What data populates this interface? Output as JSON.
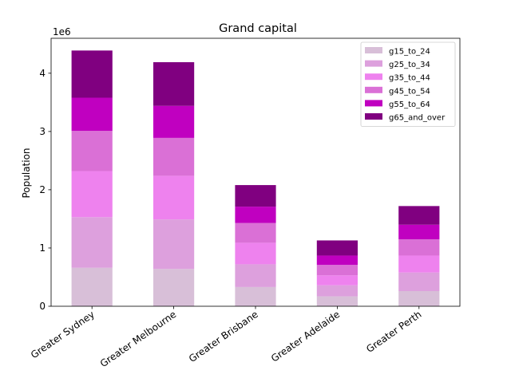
{
  "chart_data": {
    "type": "bar",
    "stacked": true,
    "title": "Grand capital",
    "xlabel": "",
    "ylabel": "Population",
    "y_multiplier_label": "1e6",
    "ylim": [
      0,
      4600000
    ],
    "yticks": [
      0,
      1000000,
      2000000,
      3000000,
      4000000
    ],
    "ytick_labels": [
      "0",
      "1",
      "2",
      "3",
      "4"
    ],
    "grid": false,
    "legend_position": "top-right",
    "categories": [
      "Greater Sydney",
      "Greater Melbourne",
      "Greater Brisbane",
      "Greater Adelaide",
      "Greater Perth"
    ],
    "series": [
      {
        "name": "g15_to_24",
        "color": "#d8bfd8",
        "values": [
          660000,
          640000,
          330000,
          170000,
          260000
        ]
      },
      {
        "name": "g25_to_34",
        "color": "#dda0dd",
        "values": [
          870000,
          850000,
          390000,
          190000,
          320000
        ]
      },
      {
        "name": "g35_to_44",
        "color": "#ee82ee",
        "values": [
          790000,
          750000,
          370000,
          170000,
          290000
        ]
      },
      {
        "name": "g45_to_54",
        "color": "#da70d6",
        "values": [
          690000,
          650000,
          340000,
          180000,
          280000
        ]
      },
      {
        "name": "g55_to_64",
        "color": "#c000c0",
        "values": [
          570000,
          550000,
          280000,
          160000,
          250000
        ]
      },
      {
        "name": "g65_and_over",
        "color": "#800080",
        "values": [
          810000,
          750000,
          370000,
          260000,
          320000
        ]
      }
    ]
  }
}
